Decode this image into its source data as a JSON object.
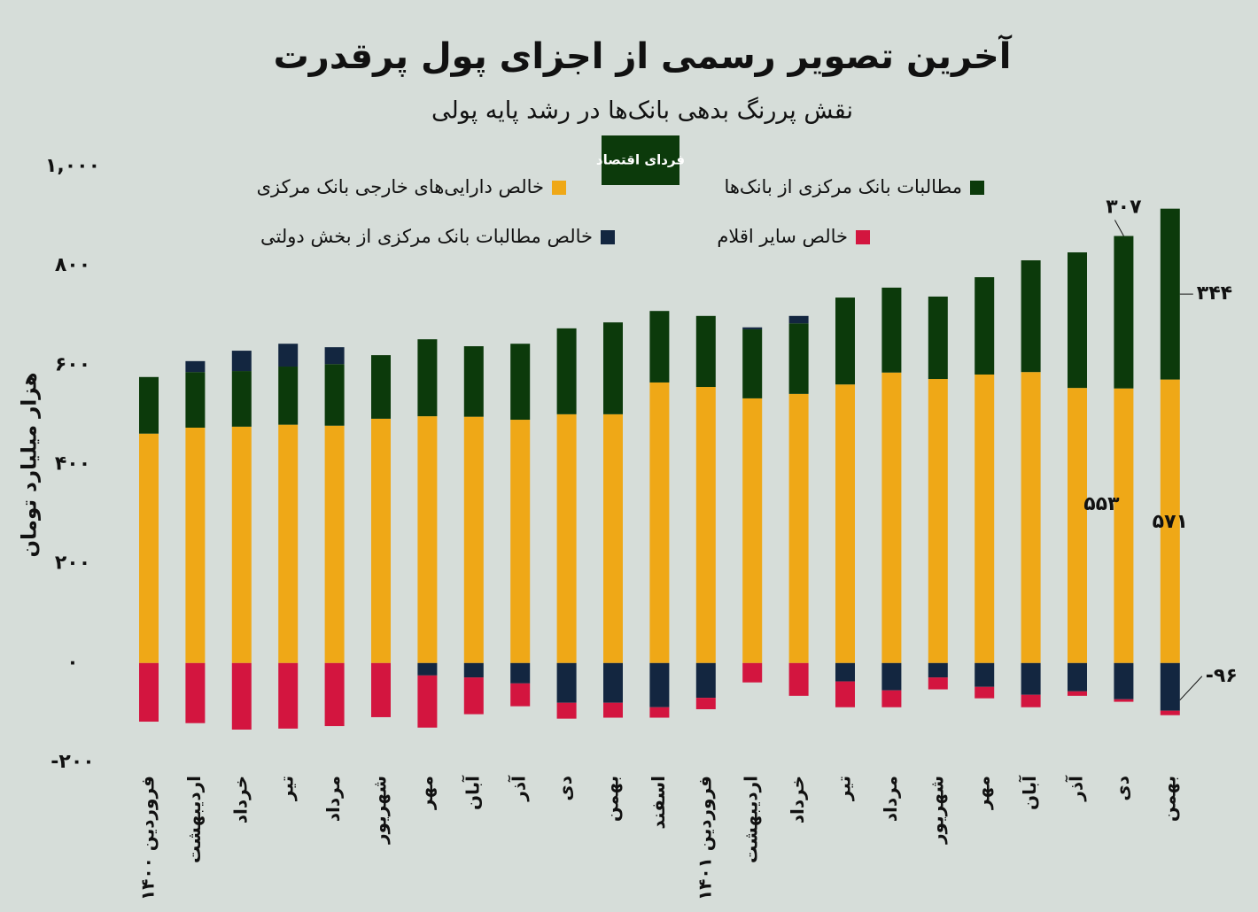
{
  "logo": "فردای اقتصاد",
  "chart_data": {
    "type": "stacked-bar",
    "title": "آخرین تصویر رسمی از اجزای پول پرقدرت",
    "subtitle": "نقش پررنگ بدهی بانک‌ها در رشد پایه پولی",
    "y_label": "هزار میلیارد تومان",
    "categories": [
      "فروردین ۱۴۰۰",
      "اردیبهشت",
      "خرداد",
      "تیر",
      "مرداد",
      "شهریور",
      "مهر",
      "آبان",
      "آذر",
      "دی",
      "بهمن",
      "اسفند",
      "فروردین ۱۴۰۱",
      "اردیبهشت",
      "خرداد",
      "تیر",
      "مرداد",
      "شهریور",
      "مهر",
      "آبان",
      "آذر",
      "دی",
      "بهمن"
    ],
    "series": [
      {
        "name": "خالص دارایی‌های خارجی بانک مرکزی",
        "color": "#efa817",
        "values": [
          462,
          474,
          476,
          480,
          478,
          492,
          497,
          496,
          490,
          501,
          501,
          565,
          556,
          533,
          542,
          561,
          585,
          572,
          581,
          586,
          554,
          553,
          571
        ],
        "value_labels": [
          null,
          null,
          null,
          null,
          null,
          null,
          null,
          null,
          null,
          null,
          null,
          null,
          null,
          null,
          null,
          null,
          null,
          null,
          null,
          null,
          null,
          "۵۵۳",
          "۵۷۱"
        ]
      },
      {
        "name": "مطالبات بانک مرکزی از بانک‌ها",
        "color": "#0c3a0b",
        "values": [
          114,
          112,
          112,
          117,
          124,
          128,
          155,
          142,
          153,
          173,
          185,
          144,
          143,
          139,
          142,
          175,
          171,
          166,
          196,
          225,
          273,
          307,
          344
        ],
        "value_labels": [
          null,
          null,
          null,
          null,
          null,
          null,
          null,
          null,
          null,
          null,
          null,
          null,
          null,
          null,
          null,
          null,
          null,
          null,
          null,
          null,
          null,
          "۳۰۷",
          "۳۴۴"
        ]
      },
      {
        "name": "خالص مطالبات بانک مرکزی از بخش دولتی",
        "color": "#132640",
        "values": [
          0,
          22,
          41,
          46,
          34,
          0,
          -25,
          -29,
          -41,
          -80,
          -80,
          -89,
          -70,
          4,
          15,
          -37,
          -55,
          -29,
          -48,
          -64,
          -57,
          -73,
          -96
        ],
        "value_labels": [
          null,
          null,
          null,
          null,
          null,
          null,
          null,
          null,
          null,
          null,
          null,
          null,
          null,
          null,
          null,
          null,
          null,
          null,
          null,
          null,
          null,
          null,
          "-۹۶"
        ]
      },
      {
        "name": "خالص سایر اقلام",
        "color": "#d3153f",
        "values": [
          -118,
          -121,
          -134,
          -132,
          -127,
          -109,
          -105,
          -74,
          -46,
          -32,
          -30,
          -21,
          -23,
          -39,
          -66,
          -52,
          -34,
          -24,
          -23,
          -25,
          -9,
          -5,
          -9
        ]
      }
    ],
    "ylim": [
      -200,
      1000
    ],
    "yticks": [
      {
        "value": -200,
        "label": "-۲۰۰"
      },
      {
        "value": 0,
        "label": "۰"
      },
      {
        "value": 200,
        "label": "۲۰۰"
      },
      {
        "value": 400,
        "label": "۴۰۰"
      },
      {
        "value": 600,
        "label": "۶۰۰"
      },
      {
        "value": 800,
        "label": "۸۰۰"
      },
      {
        "value": 1000,
        "label": "۱,۰۰۰"
      }
    ]
  }
}
